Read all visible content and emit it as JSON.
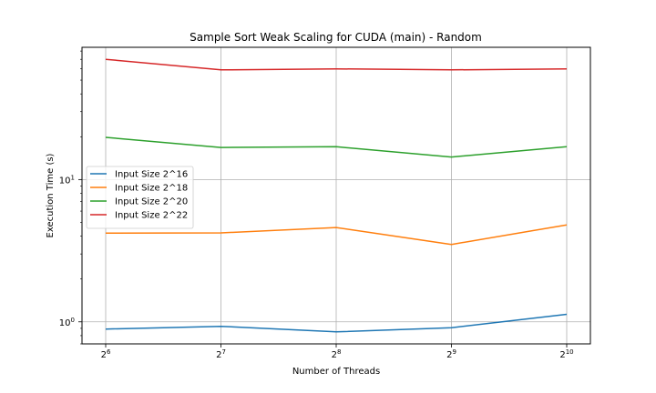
{
  "chart_data": {
    "type": "line",
    "title": "Sample Sort Weak Scaling for CUDA (main) - Random",
    "xlabel": "Number of Threads",
    "ylabel": "Execution Time (s)",
    "x": [
      64,
      128,
      256,
      512,
      1024
    ],
    "x_tick_labels": [
      {
        "base": "2",
        "exp": "6"
      },
      {
        "base": "2",
        "exp": "7"
      },
      {
        "base": "2",
        "exp": "8"
      },
      {
        "base": "2",
        "exp": "9"
      },
      {
        "base": "2",
        "exp": "10"
      }
    ],
    "x_scale": "log2",
    "y_scale": "log10",
    "ylim": [
      0.7,
      85
    ],
    "y_tick_labels": [
      {
        "value": 1,
        "base": "10",
        "exp": "0"
      },
      {
        "value": 10,
        "base": "10",
        "exp": "1"
      }
    ],
    "grid": true,
    "legend_position": "center-left",
    "series": [
      {
        "name": "Input Size 2^16",
        "color": "#1f77b4",
        "values": [
          0.89,
          0.93,
          0.85,
          0.91,
          1.13
        ]
      },
      {
        "name": "Input Size 2^18",
        "color": "#ff7f0e",
        "values": [
          4.2,
          4.22,
          4.6,
          3.5,
          4.8
        ]
      },
      {
        "name": "Input Size 2^20",
        "color": "#2ca02c",
        "values": [
          19.8,
          16.8,
          17.0,
          14.4,
          17.0
        ]
      },
      {
        "name": "Input Size 2^22",
        "color": "#d62728",
        "values": [
          70,
          59,
          60,
          59,
          60
        ]
      }
    ]
  }
}
